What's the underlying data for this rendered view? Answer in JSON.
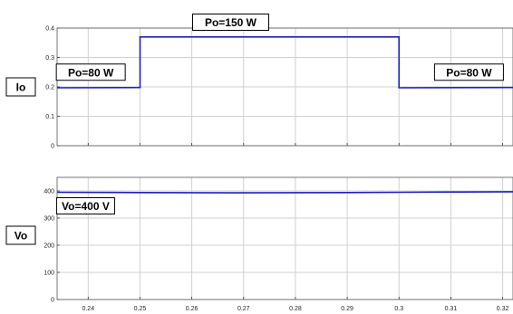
{
  "chart_data": [
    {
      "type": "line",
      "ylabel": "Io",
      "xlim": [
        0.234,
        0.322
      ],
      "ylim": [
        0,
        0.4
      ],
      "grid": true,
      "xticks": [
        "0.24",
        "0.25",
        "0.26",
        "0.27",
        "0.28",
        "0.29",
        "0.3",
        "0.31",
        "0.32"
      ],
      "yticks": [
        "0",
        "0.1",
        "0.2",
        "0.3",
        "0.4"
      ],
      "series": [
        {
          "x": [
            0.234,
            0.25,
            0.25,
            0.3,
            0.3,
            0.322
          ],
          "values": [
            0.197,
            0.198,
            0.37,
            0.37,
            0.197,
            0.198
          ],
          "color": "#1f1fbf"
        }
      ],
      "annotations": [
        {
          "text": "Po=150 W",
          "x": 0.2675,
          "y": 0.42
        },
        {
          "text": "Po=80 W",
          "x": 0.2405,
          "y": 0.25
        },
        {
          "text": "Po=80 W",
          "x": 0.3135,
          "y": 0.25
        }
      ]
    },
    {
      "type": "line",
      "ylabel": "Vo",
      "xlim": [
        0.234,
        0.322
      ],
      "ylim": [
        0,
        450
      ],
      "grid": true,
      "xticks": [
        "0.24",
        "0.25",
        "0.26",
        "0.27",
        "0.28",
        "0.29",
        "0.3",
        "0.31",
        "0.32"
      ],
      "yticks": [
        "0",
        "100",
        "200",
        "300",
        "400"
      ],
      "series": [
        {
          "x": [
            0.234,
            0.25,
            0.27,
            0.29,
            0.3,
            0.31,
            0.322
          ],
          "values": [
            395,
            394,
            393,
            394,
            395,
            396,
            397
          ],
          "color": "#1f1fbf"
        }
      ],
      "annotations": [
        {
          "text": "Vo=400 V",
          "x": 0.2395,
          "y": 345
        }
      ]
    }
  ]
}
